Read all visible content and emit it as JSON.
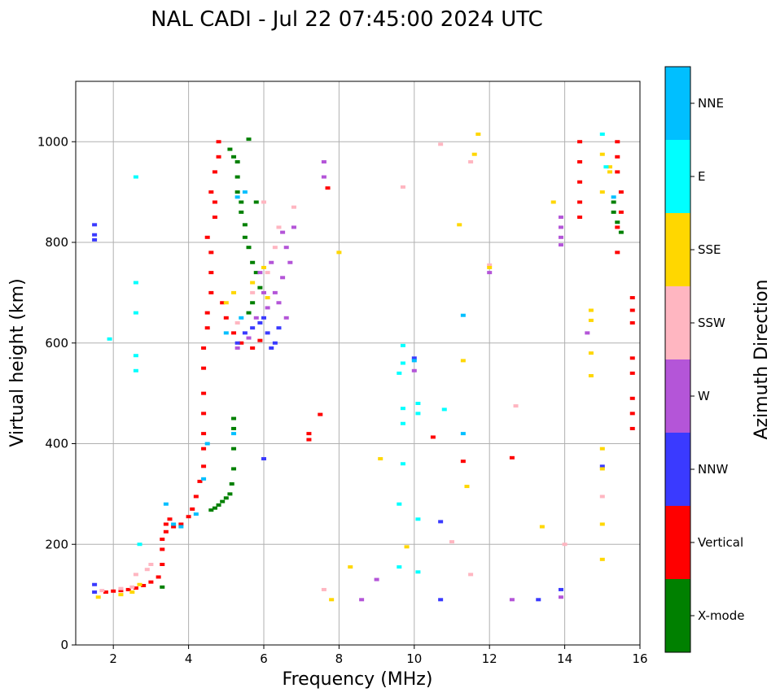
{
  "chart_data": {
    "type": "scatter",
    "title": "NAL CADI - Jul 22 07:45:00 2024 UTC",
    "xlabel": "Frequency (MHz)",
    "ylabel": "Virtual height (km)",
    "xlim": [
      1,
      16
    ],
    "ylim": [
      0,
      1120
    ],
    "xticks": [
      2,
      4,
      6,
      8,
      10,
      12,
      14,
      16
    ],
    "yticks": [
      0,
      200,
      400,
      600,
      800,
      1000
    ],
    "grid": true,
    "colorbar": {
      "label": "Azimuth Direction",
      "categories": [
        {
          "name": "X-mode",
          "color": "#008000"
        },
        {
          "name": "Vertical",
          "color": "#ff0000"
        },
        {
          "name": "NNW",
          "color": "#3a3aff"
        },
        {
          "name": "W",
          "color": "#b455d8"
        },
        {
          "name": "SSW",
          "color": "#ffb6c1"
        },
        {
          "name": "SSE",
          "color": "#ffd700"
        },
        {
          "name": "E",
          "color": "#00ffff"
        },
        {
          "name": "NNE",
          "color": "#00bfff"
        }
      ]
    },
    "series": [
      {
        "name": "X-mode",
        "points": [
          [
            3.3,
            115
          ],
          [
            4.6,
            268
          ],
          [
            4.7,
            272
          ],
          [
            4.8,
            278
          ],
          [
            4.9,
            285
          ],
          [
            5.0,
            292
          ],
          [
            5.1,
            300
          ],
          [
            5.15,
            320
          ],
          [
            5.2,
            350
          ],
          [
            5.2,
            390
          ],
          [
            5.2,
            430
          ],
          [
            5.2,
            450
          ],
          [
            5.1,
            985
          ],
          [
            5.3,
            960
          ],
          [
            5.3,
            930
          ],
          [
            5.3,
            900
          ],
          [
            5.4,
            880
          ],
          [
            5.4,
            860
          ],
          [
            5.5,
            835
          ],
          [
            5.5,
            810
          ],
          [
            5.6,
            790
          ],
          [
            5.7,
            760
          ],
          [
            5.8,
            740
          ],
          [
            5.9,
            710
          ],
          [
            5.7,
            680
          ],
          [
            5.6,
            660
          ],
          [
            5.6,
            1005
          ],
          [
            5.2,
            970
          ],
          [
            5.8,
            880
          ],
          [
            15.3,
            880
          ],
          [
            15.3,
            860
          ],
          [
            15.4,
            840
          ],
          [
            15.5,
            820
          ]
        ]
      },
      {
        "name": "Vertical",
        "points": [
          [
            1.8,
            105
          ],
          [
            2.0,
            107
          ],
          [
            2.2,
            108
          ],
          [
            2.4,
            110
          ],
          [
            2.6,
            113
          ],
          [
            2.8,
            118
          ],
          [
            3.0,
            125
          ],
          [
            3.2,
            135
          ],
          [
            3.3,
            160
          ],
          [
            3.3,
            190
          ],
          [
            3.3,
            210
          ],
          [
            3.4,
            225
          ],
          [
            3.4,
            240
          ],
          [
            3.5,
            250
          ],
          [
            3.6,
            235
          ],
          [
            3.8,
            240
          ],
          [
            4.0,
            255
          ],
          [
            4.1,
            270
          ],
          [
            4.2,
            295
          ],
          [
            4.3,
            325
          ],
          [
            4.4,
            355
          ],
          [
            4.4,
            390
          ],
          [
            4.4,
            420
          ],
          [
            4.4,
            460
          ],
          [
            4.4,
            500
          ],
          [
            4.4,
            550
          ],
          [
            4.4,
            590
          ],
          [
            4.5,
            630
          ],
          [
            4.5,
            660
          ],
          [
            4.6,
            700
          ],
          [
            4.6,
            740
          ],
          [
            4.6,
            780
          ],
          [
            4.5,
            810
          ],
          [
            4.7,
            850
          ],
          [
            4.7,
            880
          ],
          [
            4.6,
            900
          ],
          [
            4.7,
            940
          ],
          [
            4.8,
            970
          ],
          [
            4.8,
            1000
          ],
          [
            4.9,
            680
          ],
          [
            5.0,
            650
          ],
          [
            5.2,
            620
          ],
          [
            5.4,
            600
          ],
          [
            5.7,
            590
          ],
          [
            5.9,
            605
          ],
          [
            14.4,
            1000
          ],
          [
            14.4,
            960
          ],
          [
            14.4,
            920
          ],
          [
            14.4,
            880
          ],
          [
            14.4,
            850
          ],
          [
            15.4,
            1000
          ],
          [
            15.4,
            970
          ],
          [
            15.4,
            940
          ],
          [
            15.5,
            900
          ],
          [
            15.5,
            860
          ],
          [
            15.4,
            830
          ],
          [
            15.4,
            780
          ],
          [
            15.8,
            690
          ],
          [
            15.8,
            665
          ],
          [
            15.8,
            640
          ],
          [
            15.8,
            570
          ],
          [
            15.8,
            540
          ],
          [
            15.8,
            490
          ],
          [
            15.8,
            460
          ],
          [
            15.8,
            430
          ],
          [
            7.2,
            420
          ],
          [
            7.2,
            408
          ],
          [
            7.5,
            458
          ],
          [
            10.5,
            413
          ],
          [
            11.3,
            365
          ],
          [
            12.6,
            372
          ],
          [
            7.7,
            908
          ]
        ]
      },
      {
        "name": "NNW",
        "points": [
          [
            1.5,
            835
          ],
          [
            1.5,
            815
          ],
          [
            1.5,
            805
          ],
          [
            1.5,
            120
          ],
          [
            1.5,
            105
          ],
          [
            5.3,
            600
          ],
          [
            5.5,
            620
          ],
          [
            5.7,
            630
          ],
          [
            5.9,
            640
          ],
          [
            6.1,
            620
          ],
          [
            6.3,
            600
          ],
          [
            6.2,
            590
          ],
          [
            6.0,
            650
          ],
          [
            6.4,
            630
          ],
          [
            10.0,
            570
          ],
          [
            10.7,
            245
          ],
          [
            10.7,
            90
          ],
          [
            13.3,
            90
          ],
          [
            13.9,
            110
          ],
          [
            15.0,
            355
          ],
          [
            6.0,
            370
          ]
        ]
      },
      {
        "name": "W",
        "points": [
          [
            5.3,
            590
          ],
          [
            5.6,
            610
          ],
          [
            5.8,
            650
          ],
          [
            6.1,
            670
          ],
          [
            6.3,
            700
          ],
          [
            6.5,
            730
          ],
          [
            6.7,
            760
          ],
          [
            6.6,
            790
          ],
          [
            6.5,
            820
          ],
          [
            6.8,
            830
          ],
          [
            6.2,
            760
          ],
          [
            6.4,
            680
          ],
          [
            6.6,
            650
          ],
          [
            6.0,
            700
          ],
          [
            5.9,
            740
          ],
          [
            13.9,
            850
          ],
          [
            13.9,
            830
          ],
          [
            13.9,
            810
          ],
          [
            13.9,
            795
          ],
          [
            7.6,
            930
          ],
          [
            7.6,
            960
          ],
          [
            10.0,
            545
          ],
          [
            12.6,
            90
          ],
          [
            13.9,
            95
          ],
          [
            9.0,
            130
          ],
          [
            8.6,
            90
          ],
          [
            14.6,
            620
          ],
          [
            12.0,
            740
          ]
        ]
      },
      {
        "name": "SSW",
        "points": [
          [
            1.7,
            108
          ],
          [
            2.2,
            112
          ],
          [
            2.5,
            115
          ],
          [
            2.6,
            140
          ],
          [
            2.9,
            150
          ],
          [
            3.0,
            160
          ],
          [
            5.3,
            640
          ],
          [
            5.7,
            700
          ],
          [
            6.1,
            740
          ],
          [
            6.3,
            790
          ],
          [
            6.4,
            830
          ],
          [
            6.8,
            870
          ],
          [
            6.0,
            880
          ],
          [
            9.7,
            910
          ],
          [
            11.5,
            960
          ],
          [
            10.7,
            995
          ],
          [
            11.0,
            205
          ],
          [
            11.5,
            140
          ],
          [
            12.7,
            475
          ],
          [
            14.0,
            200
          ],
          [
            15.0,
            295
          ],
          [
            7.6,
            110
          ],
          [
            12.0,
            755
          ]
        ]
      },
      {
        "name": "SSE",
        "points": [
          [
            1.6,
            95
          ],
          [
            2.2,
            100
          ],
          [
            2.5,
            105
          ],
          [
            2.7,
            120
          ],
          [
            5.0,
            680
          ],
          [
            5.2,
            700
          ],
          [
            5.7,
            720
          ],
          [
            6.0,
            750
          ],
          [
            6.1,
            690
          ],
          [
            8.0,
            780
          ],
          [
            9.1,
            370
          ],
          [
            9.8,
            195
          ],
          [
            7.8,
            90
          ],
          [
            8.3,
            155
          ],
          [
            11.3,
            565
          ],
          [
            11.7,
            1015
          ],
          [
            11.6,
            975
          ],
          [
            11.2,
            835
          ],
          [
            11.4,
            315
          ],
          [
            12.0,
            750
          ],
          [
            13.4,
            235
          ],
          [
            13.7,
            880
          ],
          [
            14.7,
            665
          ],
          [
            14.7,
            645
          ],
          [
            14.7,
            580
          ],
          [
            14.7,
            535
          ],
          [
            15.0,
            390
          ],
          [
            15.0,
            350
          ],
          [
            15.0,
            240
          ],
          [
            15.0,
            170
          ],
          [
            15.0,
            975
          ],
          [
            15.0,
            900
          ],
          [
            15.2,
            950
          ],
          [
            15.2,
            940
          ]
        ]
      },
      {
        "name": "E",
        "points": [
          [
            2.6,
            930
          ],
          [
            2.6,
            720
          ],
          [
            2.6,
            660
          ],
          [
            2.6,
            575
          ],
          [
            2.6,
            545
          ],
          [
            2.7,
            200
          ],
          [
            1.9,
            608
          ],
          [
            9.7,
            595
          ],
          [
            9.7,
            560
          ],
          [
            9.6,
            540
          ],
          [
            9.7,
            470
          ],
          [
            9.7,
            440
          ],
          [
            9.7,
            360
          ],
          [
            9.6,
            280
          ],
          [
            9.6,
            155
          ],
          [
            10.1,
            480
          ],
          [
            10.1,
            460
          ],
          [
            10.1,
            250
          ],
          [
            10.1,
            145
          ],
          [
            10.8,
            468
          ],
          [
            15.0,
            1015
          ],
          [
            15.1,
            950
          ]
        ]
      },
      {
        "name": "NNE",
        "points": [
          [
            3.4,
            280
          ],
          [
            3.6,
            240
          ],
          [
            3.8,
            235
          ],
          [
            4.2,
            260
          ],
          [
            4.4,
            330
          ],
          [
            4.5,
            400
          ],
          [
            5.2,
            420
          ],
          [
            5.3,
            890
          ],
          [
            5.5,
            900
          ],
          [
            5.0,
            620
          ],
          [
            5.4,
            650
          ],
          [
            11.3,
            420
          ],
          [
            11.3,
            655
          ],
          [
            10.0,
            565
          ],
          [
            15.3,
            890
          ]
        ]
      }
    ]
  }
}
